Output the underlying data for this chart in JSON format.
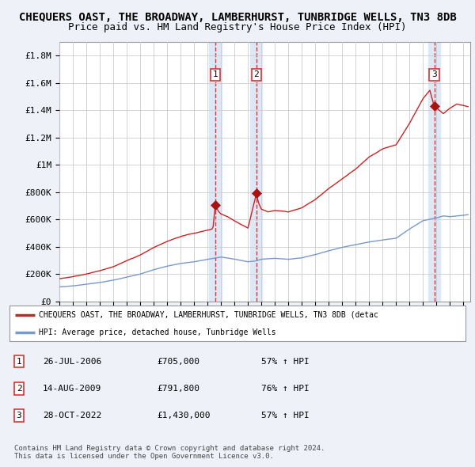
{
  "title": "CHEQUERS OAST, THE BROADWAY, LAMBERHURST, TUNBRIDGE WELLS, TN3 8DB",
  "subtitle": "Price paid vs. HM Land Registry's House Price Index (HPI)",
  "title_fontsize": 10,
  "subtitle_fontsize": 9,
  "bg_color": "#eef2f8",
  "plot_bg_color": "#ffffff",
  "grid_color": "#cccccc",
  "ylim": [
    0,
    1900000
  ],
  "yticks": [
    0,
    200000,
    400000,
    600000,
    800000,
    1000000,
    1200000,
    1400000,
    1600000,
    1800000
  ],
  "ytick_labels": [
    "£0",
    "£200K",
    "£400K",
    "£600K",
    "£800K",
    "£1M",
    "£1.2M",
    "£1.4M",
    "£1.6M",
    "£1.8M"
  ],
  "xlim_start": 1995.0,
  "xlim_end": 2025.5,
  "sale_dates": [
    2006.57,
    2009.62,
    2022.83
  ],
  "sale_prices": [
    705000,
    791800,
    1430000
  ],
  "sale_labels": [
    "1",
    "2",
    "3"
  ],
  "hpi_color": "#7799cc",
  "price_color": "#cc2222",
  "sale_marker_color": "#aa1111",
  "vline_color": "#dd3333",
  "shade_color": "#dce8f5",
  "legend_red_label": "CHEQUERS OAST, THE BROADWAY, LAMBERHURST, TUNBRIDGE WELLS, TN3 8DB (detac",
  "legend_blue_label": "HPI: Average price, detached house, Tunbridge Wells",
  "table_rows": [
    [
      "1",
      "26-JUL-2006",
      "£705,000",
      "57% ↑ HPI"
    ],
    [
      "2",
      "14-AUG-2009",
      "£791,800",
      "76% ↑ HPI"
    ],
    [
      "3",
      "28-OCT-2022",
      "£1,430,000",
      "57% ↑ HPI"
    ]
  ],
  "footer": "Contains HM Land Registry data © Crown copyright and database right 2024.\nThis data is licensed under the Open Government Licence v3.0."
}
